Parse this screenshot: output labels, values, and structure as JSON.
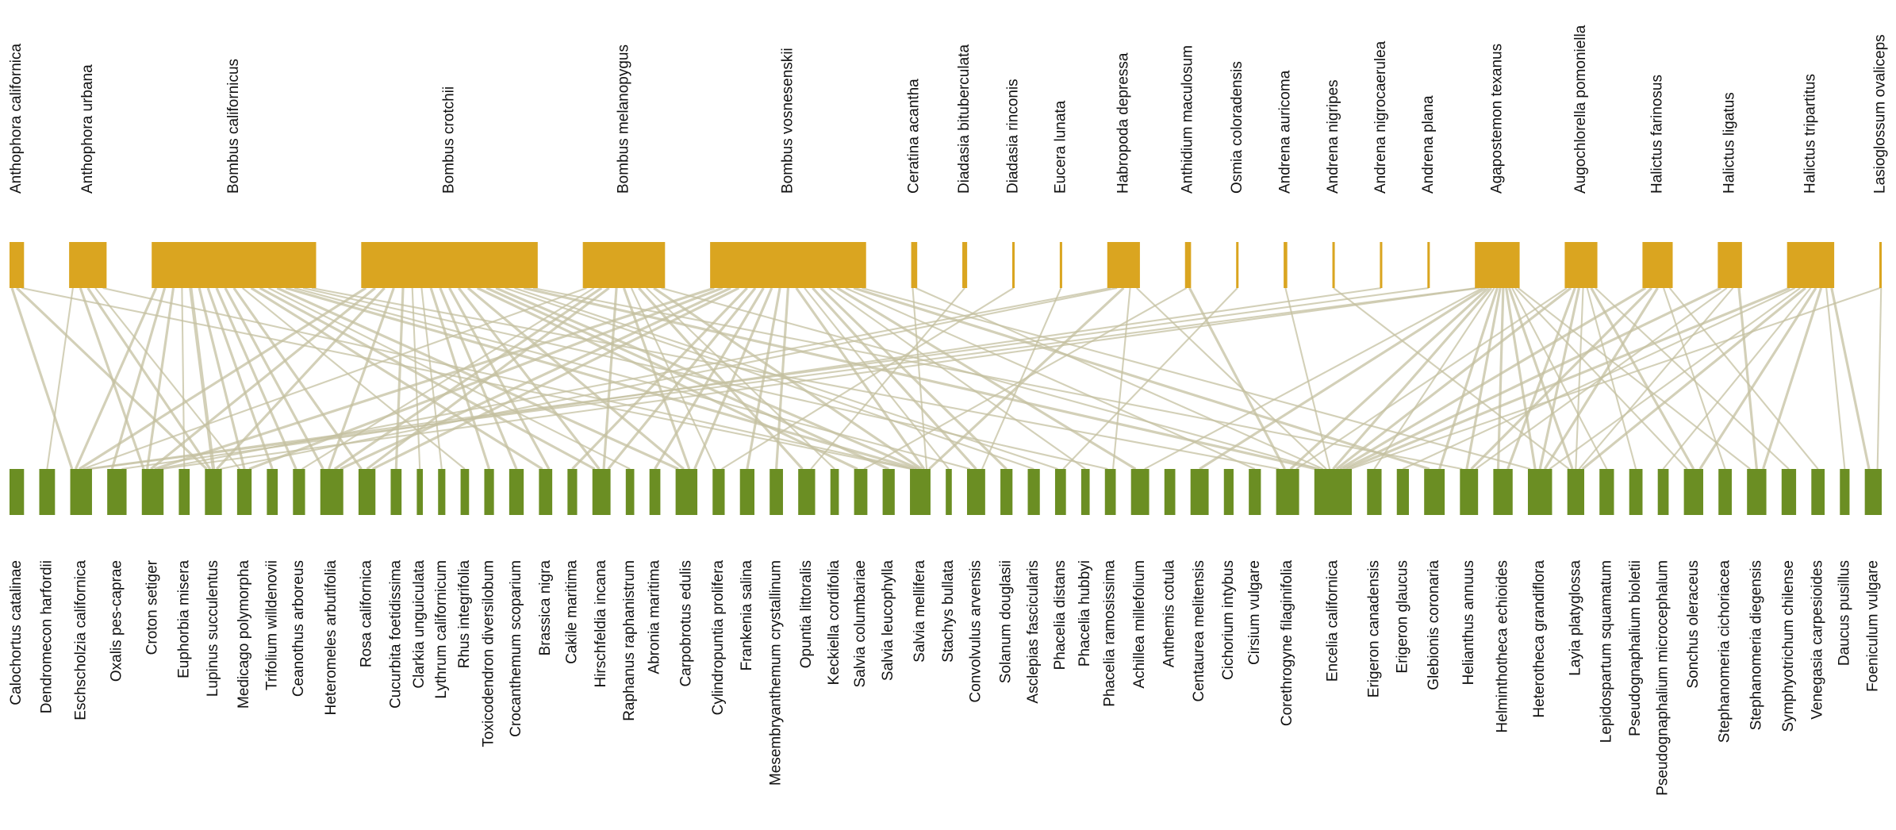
{
  "chart_data": {
    "type": "bipartite",
    "top": {
      "color": "#daa520",
      "labels": [
        "Anthophora californica",
        "Anthophora urbana",
        "Bombus californicus",
        "Bombus crotchii",
        "Bombus melanopygus",
        "Bombus vosnesenskii",
        "Ceratina acantha",
        "Diadasia bituberculata",
        "Diadasia rinconis",
        "Eucera lunata",
        "Habropoda depressa",
        "Anthidium maculosum",
        "Osmia coloradensis",
        "Andrena auricoma",
        "Andrena nigripes",
        "Andrena nigrocaerulea",
        "Andrena plana",
        "Agapostemon texanus",
        "Augochlorella pomoniella",
        "Halictus farinosus",
        "Halictus ligatus",
        "Halictus tripartitus",
        "Lasioglossum ovaliceps"
      ],
      "sizes": [
        12,
        31,
        136,
        146,
        68,
        129,
        5,
        4,
        2,
        2,
        27,
        5,
        2,
        3,
        2,
        2,
        2,
        37,
        27,
        25,
        20,
        39,
        2
      ]
    },
    "bottom": {
      "color": "#6b8e23",
      "labels": [
        "Calochortus catalinae",
        "Dendromecon harfordii",
        "Eschscholzia californica",
        "Oxalis pes-caprae",
        "Croton setiger",
        "Euphorbia misera",
        "Lupinus succulentus",
        "Medicago polymorpha",
        "Trifolium willdenovii",
        "Ceanothus arboreus",
        "Heteromeles arbutifolia",
        "Rosa californica",
        "Cucurbita foetidissima",
        "Clarkia unguiculata",
        "Lythrum californicum",
        "Rhus integrifolia",
        "Toxicodendron diversilobum",
        "Crocanthemum scoparium",
        "Brassica nigra",
        "Cakile maritima",
        "Hirschfeldia incana",
        "Raphanus raphanistrum",
        "Abronia maritima",
        "Carpobrotus edulis",
        "Cylindropuntia prolifera",
        "Frankenia salina",
        "Mesembryanthemum crystallinum",
        "Opuntia littoralis",
        "Keckiella cordifolia",
        "Salvia columbariae",
        "Salvia leucophylla",
        "Salvia mellifera",
        "Stachys bullata",
        "Convolvulus arvensis",
        "Solanum douglasii",
        "Asclepias fascicularis",
        "Phacelia distans",
        "Phacelia hubbyi",
        "Phacelia ramosissima",
        "Achillea millefolium",
        "Anthemis cotula",
        "Centaurea melitensis",
        "Cichorium intybus",
        "Cirsium vulgare",
        "Corethrogyne filaginifolia",
        "Encelia californica",
        "Erigeron canadensis",
        "Erigeron glaucus",
        "Glebionis coronaria",
        "Helianthus annuus",
        "Helminthotheca echioides",
        "Heterotheca grandiflora",
        "Layia platyglossa",
        "Lepidospartum squamatum",
        "Pseudognaphalium bioletii",
        "Pseudognaphalium microcephalum",
        "Sonchus oleraceus",
        "Stephanomeria cichoriacea",
        "Stephanomeria diegensis",
        "Symphyotrichum chilense",
        "Venegasia carpesioides",
        "Daucus pusillus",
        "Foeniculum vulgare"
      ],
      "sizes": [
        12,
        13,
        18,
        16,
        18,
        9,
        14,
        12,
        9,
        10,
        19,
        14,
        9,
        5,
        6,
        7,
        8,
        12,
        11,
        8,
        15,
        7,
        9,
        18,
        10,
        12,
        11,
        14,
        7,
        11,
        10,
        17,
        5,
        15,
        10,
        10,
        9,
        7,
        9,
        15,
        9,
        15,
        8,
        10,
        19,
        31,
        12,
        10,
        17,
        15,
        16,
        20,
        14,
        12,
        11,
        9,
        16,
        11,
        16,
        12,
        11,
        8,
        14
      ]
    },
    "links": [
      [
        "Anthophora californica",
        "Eschscholzia californica",
        2
      ],
      [
        "Anthophora californica",
        "Lupinus succulentus",
        2
      ],
      [
        "Anthophora californica",
        "Salvia mellifera",
        1
      ],
      [
        "Anthophora urbana",
        "Dendromecon harfordii",
        1
      ],
      [
        "Anthophora urbana",
        "Croton setiger",
        2
      ],
      [
        "Anthophora urbana",
        "Lupinus succulentus",
        2
      ],
      [
        "Anthophora urbana",
        "Medicago polymorpha",
        1
      ],
      [
        "Anthophora urbana",
        "Salvia mellifera",
        1
      ],
      [
        "Bombus californicus",
        "Eschscholzia californica",
        2
      ],
      [
        "Bombus californicus",
        "Oxalis pes-caprae",
        2
      ],
      [
        "Bombus californicus",
        "Croton setiger",
        2
      ],
      [
        "Bombus californicus",
        "Euphorbia misera",
        1
      ],
      [
        "Bombus californicus",
        "Lupinus succulentus",
        3
      ],
      [
        "Bombus californicus",
        "Medicago polymorpha",
        2
      ],
      [
        "Bombus californicus",
        "Trifolium willdenovii",
        2
      ],
      [
        "Bombus californicus",
        "Ceanothus arboreus",
        2
      ],
      [
        "Bombus californicus",
        "Heteromeles arbutifolia",
        2
      ],
      [
        "Bombus californicus",
        "Rosa californica",
        2
      ],
      [
        "Bombus californicus",
        "Rhus integrifolia",
        1
      ],
      [
        "Bombus californicus",
        "Brassica nigra",
        2
      ],
      [
        "Bombus californicus",
        "Hirschfeldia incana",
        2
      ],
      [
        "Bombus californicus",
        "Raphanus raphanistrum",
        1
      ],
      [
        "Bombus californicus",
        "Carpobrotus edulis",
        2
      ],
      [
        "Bombus californicus",
        "Salvia mellifera",
        2
      ],
      [
        "Bombus californicus",
        "Convolvulus arvensis",
        1
      ],
      [
        "Bombus californicus",
        "Phacelia ramosissima",
        1
      ],
      [
        "Bombus californicus",
        "Corethrogyne filaginifolia",
        1
      ],
      [
        "Bombus crotchii",
        "Eschscholzia californica",
        2
      ],
      [
        "Bombus crotchii",
        "Croton setiger",
        2
      ],
      [
        "Bombus crotchii",
        "Lupinus succulentus",
        2
      ],
      [
        "Bombus crotchii",
        "Heteromeles arbutifolia",
        2
      ],
      [
        "Bombus crotchii",
        "Cucurbita foetidissima",
        2
      ],
      [
        "Bombus crotchii",
        "Clarkia unguiculata",
        1
      ],
      [
        "Bombus crotchii",
        "Lythrum californicum",
        1
      ],
      [
        "Bombus crotchii",
        "Toxicodendron diversilobum",
        2
      ],
      [
        "Bombus crotchii",
        "Crocanthemum scoparium",
        2
      ],
      [
        "Bombus crotchii",
        "Brassica nigra",
        2
      ],
      [
        "Bombus crotchii",
        "Hirschfeldia incana",
        2
      ],
      [
        "Bombus crotchii",
        "Carpobrotus edulis",
        2
      ],
      [
        "Bombus crotchii",
        "Salvia columbariae",
        2
      ],
      [
        "Bombus crotchii",
        "Salvia leucophylla",
        2
      ],
      [
        "Bombus crotchii",
        "Salvia mellifera",
        2
      ],
      [
        "Bombus crotchii",
        "Asclepias fascicularis",
        1
      ],
      [
        "Bombus crotchii",
        "Phacelia distans",
        1
      ],
      [
        "Bombus crotchii",
        "Encelia californica",
        2
      ],
      [
        "Bombus crotchii",
        "Helianthus annuus",
        1
      ],
      [
        "Bombus melanopygus",
        "Eschscholzia californica",
        1
      ],
      [
        "Bombus melanopygus",
        "Ceanothus arboreus",
        1
      ],
      [
        "Bombus melanopygus",
        "Heteromeles arbutifolia",
        2
      ],
      [
        "Bombus melanopygus",
        "Rosa californica",
        2
      ],
      [
        "Bombus melanopygus",
        "Hirschfeldia incana",
        2
      ],
      [
        "Bombus melanopygus",
        "Carpobrotus edulis",
        2
      ],
      [
        "Bombus melanopygus",
        "Cylindropuntia prolifera",
        1
      ],
      [
        "Bombus melanopygus",
        "Opuntia littoralis",
        2
      ],
      [
        "Bombus melanopygus",
        "Keckiella cordifolia",
        1
      ],
      [
        "Bombus melanopygus",
        "Salvia mellifera",
        2
      ],
      [
        "Bombus melanopygus",
        "Encelia californica",
        1
      ],
      [
        "Bombus vosnesenskii",
        "Croton setiger",
        2
      ],
      [
        "Bombus vosnesenskii",
        "Medicago polymorpha",
        2
      ],
      [
        "Bombus vosnesenskii",
        "Heteromeles arbutifolia",
        2
      ],
      [
        "Bombus vosnesenskii",
        "Rosa californica",
        2
      ],
      [
        "Bombus vosnesenskii",
        "Cakile maritima",
        2
      ],
      [
        "Bombus vosnesenskii",
        "Hirschfeldia incana",
        2
      ],
      [
        "Bombus vosnesenskii",
        "Abronia maritima",
        2
      ],
      [
        "Bombus vosnesenskii",
        "Carpobrotus edulis",
        2
      ],
      [
        "Bombus vosnesenskii",
        "Frankenia salina",
        2
      ],
      [
        "Bombus vosnesenskii",
        "Mesembryanthemum crystallinum",
        2
      ],
      [
        "Bombus vosnesenskii",
        "Salvia mellifera",
        2
      ],
      [
        "Bombus vosnesenskii",
        "Stachys bullata",
        1
      ],
      [
        "Bombus vosnesenskii",
        "Convolvulus arvensis",
        2
      ],
      [
        "Bombus vosnesenskii",
        "Solanum douglasii",
        2
      ],
      [
        "Bombus vosnesenskii",
        "Phacelia hubbyi",
        1
      ],
      [
        "Bombus vosnesenskii",
        "Achillea millefolium",
        2
      ],
      [
        "Bombus vosnesenskii",
        "Cirsium vulgare",
        1
      ],
      [
        "Bombus vosnesenskii",
        "Glebionis coronaria",
        2
      ],
      [
        "Bombus vosnesenskii",
        "Heterotheca grandiflora",
        1
      ],
      [
        "Ceratina acantha",
        "Salvia mellifera",
        1
      ],
      [
        "Ceratina acantha",
        "Encelia californica",
        1
      ],
      [
        "Diadasia bituberculata",
        "Opuntia littoralis",
        1
      ],
      [
        "Diadasia rinconis",
        "Cylindropuntia prolifera",
        1
      ],
      [
        "Eucera lunata",
        "Convolvulus arvensis",
        1
      ],
      [
        "Habropoda depressa",
        "Croton setiger",
        1
      ],
      [
        "Habropoda depressa",
        "Lupinus succulentus",
        1
      ],
      [
        "Habropoda depressa",
        "Salvia mellifera",
        2
      ],
      [
        "Habropoda depressa",
        "Phacelia ramosissima",
        1
      ],
      [
        "Habropoda depressa",
        "Encelia californica",
        1
      ],
      [
        "Anthidium maculosum",
        "Salvia columbariae",
        1
      ],
      [
        "Anthidium maculosum",
        "Corethrogyne filaginifolia",
        2
      ],
      [
        "Osmia coloradensis",
        "Phacelia distans",
        1
      ],
      [
        "Andrena auricoma",
        "Encelia californica",
        1
      ],
      [
        "Andrena nigripes",
        "Layia platyglossa",
        1
      ],
      [
        "Andrena nigrocaerulea",
        "Oxalis pes-caprae",
        1
      ],
      [
        "Andrena plana",
        "Eschscholzia californica",
        1
      ],
      [
        "Agapostemon texanus",
        "Eschscholzia californica",
        1
      ],
      [
        "Agapostemon texanus",
        "Croton setiger",
        1
      ],
      [
        "Agapostemon texanus",
        "Achillea millefolium",
        1
      ],
      [
        "Agapostemon texanus",
        "Centaurea melitensis",
        2
      ],
      [
        "Agapostemon texanus",
        "Corethrogyne filaginifolia",
        2
      ],
      [
        "Agapostemon texanus",
        "Encelia californica",
        2
      ],
      [
        "Agapostemon texanus",
        "Erigeron canadensis",
        1
      ],
      [
        "Agapostemon texanus",
        "Glebionis coronaria",
        2
      ],
      [
        "Agapostemon texanus",
        "Helianthus annuus",
        2
      ],
      [
        "Agapostemon texanus",
        "Helminthotheca echioides",
        2
      ],
      [
        "Agapostemon texanus",
        "Heterotheca grandiflora",
        2
      ],
      [
        "Agapostemon texanus",
        "Layia platyglossa",
        2
      ],
      [
        "Agapostemon texanus",
        "Lepidospartum squamatum",
        1
      ],
      [
        "Agapostemon texanus",
        "Sonchus oleraceus",
        1
      ],
      [
        "Agapostemon texanus",
        "Stephanomeria diegensis",
        1
      ],
      [
        "Augochlorella pomoniella",
        "Corethrogyne filaginifolia",
        1
      ],
      [
        "Augochlorella pomoniella",
        "Encelia californica",
        2
      ],
      [
        "Augochlorella pomoniella",
        "Helminthotheca echioides",
        2
      ],
      [
        "Augochlorella pomoniella",
        "Heterotheca grandiflora",
        2
      ],
      [
        "Augochlorella pomoniella",
        "Layia platyglossa",
        1
      ],
      [
        "Augochlorella pomoniella",
        "Pseudognaphalium bioletii",
        1
      ],
      [
        "Augochlorella pomoniella",
        "Sonchus oleraceus",
        2
      ],
      [
        "Augochlorella pomoniella",
        "Symphyotrichum chilense",
        1
      ],
      [
        "Halictus farinosus",
        "Encelia californica",
        2
      ],
      [
        "Halictus farinosus",
        "Helianthus annuus",
        2
      ],
      [
        "Halictus farinosus",
        "Heterotheca grandiflora",
        2
      ],
      [
        "Halictus farinosus",
        "Stephanomeria cichoriacea",
        1
      ],
      [
        "Halictus farinosus",
        "Venegasia carpesioides",
        1
      ],
      [
        "Halictus ligatus",
        "Encelia californica",
        2
      ],
      [
        "Halictus ligatus",
        "Helianthus annuus",
        1
      ],
      [
        "Halictus ligatus",
        "Layia platyglossa",
        1
      ],
      [
        "Halictus ligatus",
        "Stephanomeria diegensis",
        2
      ],
      [
        "Halictus tripartitus",
        "Encelia californica",
        2
      ],
      [
        "Halictus tripartitus",
        "Erigeron glaucus",
        1
      ],
      [
        "Halictus tripartitus",
        "Heterotheca grandiflora",
        1
      ],
      [
        "Halictus tripartitus",
        "Layia platyglossa",
        2
      ],
      [
        "Halictus tripartitus",
        "Pseudognaphalium microcephalum",
        1
      ],
      [
        "Halictus tripartitus",
        "Sonchus oleraceus",
        2
      ],
      [
        "Halictus tripartitus",
        "Stephanomeria diegensis",
        2
      ],
      [
        "Halictus tripartitus",
        "Daucus pusillus",
        1
      ],
      [
        "Halictus tripartitus",
        "Foeniculum vulgare",
        2
      ],
      [
        "Lasioglossum ovaliceps",
        "Encelia californica",
        1
      ],
      [
        "Lasioglossum ovaliceps",
        "Foeniculum vulgare",
        1
      ]
    ]
  }
}
